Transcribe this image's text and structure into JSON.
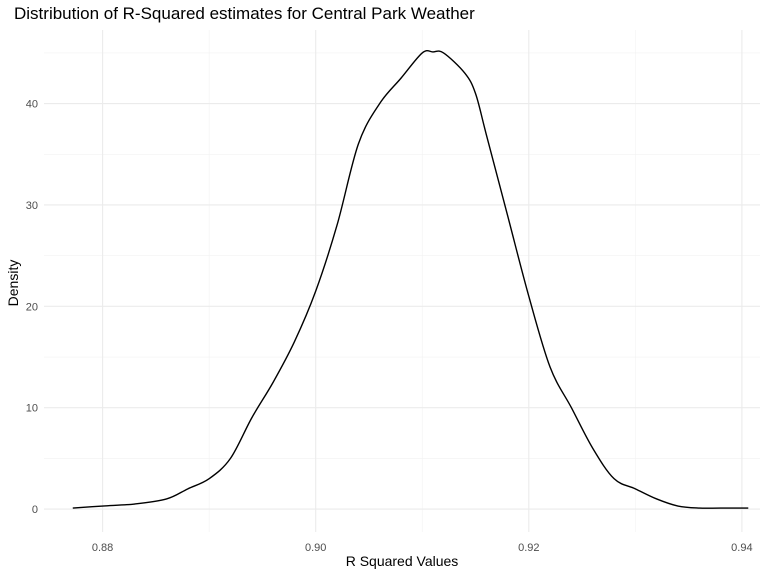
{
  "chart_data": {
    "type": "line",
    "title": "Distribution of R-Squared estimates for Central Park Weather",
    "xlabel": "R Squared Values",
    "ylabel": "Density",
    "xlim": [
      0.8745,
      0.9417
    ],
    "ylim": [
      -2.26,
      47.26
    ],
    "x_ticks": [
      0.88,
      0.9,
      0.92,
      0.94
    ],
    "x_tick_labels": [
      "0.88",
      "0.90",
      "0.92",
      "0.94"
    ],
    "y_ticks": [
      0,
      10,
      20,
      30,
      40
    ],
    "y_tick_labels": [
      "0",
      "10",
      "20",
      "30",
      "40"
    ],
    "grid": true,
    "legend": "none",
    "series": [
      {
        "x": [
          0.8772,
          0.88,
          0.883,
          0.886,
          0.888,
          0.89,
          0.892,
          0.894,
          0.896,
          0.898,
          0.9,
          0.902,
          0.904,
          0.906,
          0.908,
          0.91,
          0.911,
          0.912,
          0.914,
          0.915,
          0.916,
          0.918,
          0.92,
          0.922,
          0.924,
          0.926,
          0.928,
          0.93,
          0.932,
          0.934,
          0.936,
          0.938,
          0.9406
        ],
        "y": [
          0.1,
          0.3,
          0.5,
          1.0,
          2.0,
          3.0,
          5.0,
          9.0,
          12.5,
          16.5,
          21.5,
          28.0,
          36.0,
          40.0,
          42.5,
          45.0,
          45.1,
          45.0,
          43.0,
          41.0,
          37.0,
          29.0,
          21.0,
          14.0,
          10.0,
          6.0,
          3.0,
          2.0,
          1.0,
          0.3,
          0.1,
          0.1,
          0.1
        ]
      }
    ]
  }
}
